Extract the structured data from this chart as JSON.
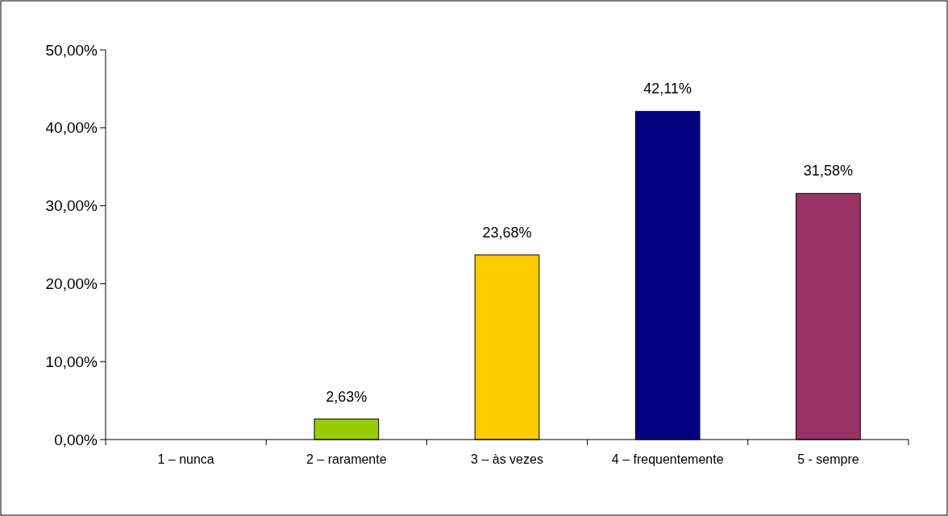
{
  "chart_data": {
    "type": "bar",
    "categories": [
      "1 – nunca",
      "2 – raramente",
      "3 – às vezes",
      "4 – frequentemente",
      "5 - sempre"
    ],
    "values": [
      0,
      2.63,
      23.68,
      42.11,
      31.58
    ],
    "colors": [
      "#99cc00",
      "#99cc00",
      "#ffcc00",
      "#000080",
      "#993366"
    ],
    "value_labels": [
      null,
      "2,63%",
      "23,68%",
      "42,11%",
      "31,58%"
    ],
    "ylim": [
      0,
      50
    ],
    "yticks": [
      {
        "value": 0,
        "label": "0,00%"
      },
      {
        "value": 10,
        "label": "10,00%"
      },
      {
        "value": 20,
        "label": "20,00%"
      },
      {
        "value": 30,
        "label": "30,00%"
      },
      {
        "value": 40,
        "label": "40,00%"
      },
      {
        "value": 50,
        "label": "50,00%"
      }
    ],
    "grid": false
  }
}
